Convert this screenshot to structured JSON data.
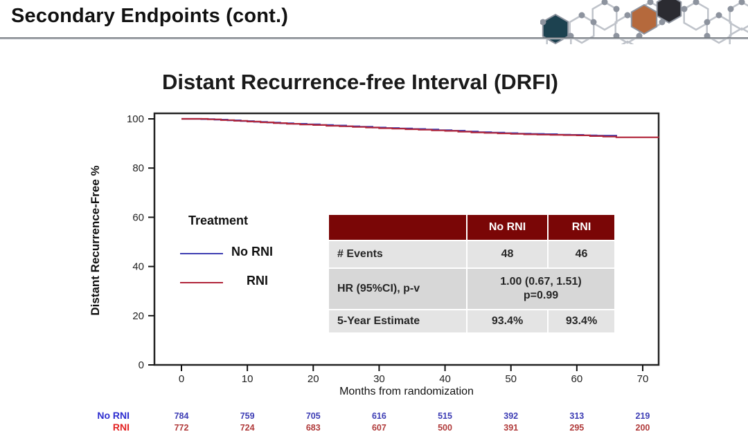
{
  "slide_header": {
    "title": "Secondary Endpoints (cont.)"
  },
  "chart_data": {
    "type": "line",
    "subtype": "kaplan-meier-step",
    "title": "Distant Recurrence-free Interval (DRFI)",
    "xlabel": "Months from randomization",
    "ylabel": "Distant Recurrence-Free %",
    "xlim": [
      0,
      72.4
    ],
    "ylim": [
      0,
      100
    ],
    "x_ticks": [
      0,
      10,
      20,
      30,
      40,
      50,
      60,
      70
    ],
    "y_ticks": [
      0,
      20,
      40,
      60,
      80,
      100
    ],
    "grid": "off",
    "legend_position": "inside-left",
    "legend_title": "Treatment",
    "series": [
      {
        "name": "No RNI",
        "color": "#3c3cb2",
        "step_points": [
          [
            0,
            100
          ],
          [
            3,
            99.9
          ],
          [
            5,
            99.7
          ],
          [
            7,
            99.4
          ],
          [
            9,
            99.1
          ],
          [
            11,
            98.8
          ],
          [
            13,
            98.5
          ],
          [
            15,
            98.2
          ],
          [
            17,
            98.0
          ],
          [
            19,
            97.8
          ],
          [
            21,
            97.5
          ],
          [
            23,
            97.3
          ],
          [
            25,
            97.0
          ],
          [
            27,
            96.8
          ],
          [
            29,
            96.5
          ],
          [
            31,
            96.3
          ],
          [
            33,
            96.1
          ],
          [
            35,
            95.9
          ],
          [
            37,
            95.7
          ],
          [
            39,
            95.4
          ],
          [
            41,
            95.2
          ],
          [
            43,
            94.9
          ],
          [
            45,
            94.6
          ],
          [
            47,
            94.4
          ],
          [
            49,
            94.2
          ],
          [
            51,
            94.0
          ],
          [
            53,
            93.9
          ],
          [
            55,
            93.8
          ],
          [
            57,
            93.6
          ],
          [
            59,
            93.5
          ],
          [
            61,
            93.3
          ],
          [
            63,
            93.2
          ],
          [
            66,
            92.8
          ]
        ]
      },
      {
        "name": "RNI",
        "color": "#b02438",
        "step_points": [
          [
            0,
            100
          ],
          [
            4,
            99.8
          ],
          [
            6,
            99.5
          ],
          [
            8,
            99.2
          ],
          [
            10,
            98.9
          ],
          [
            12,
            98.6
          ],
          [
            14,
            98.3
          ],
          [
            16,
            98.0
          ],
          [
            18,
            97.7
          ],
          [
            20,
            97.5
          ],
          [
            22,
            97.2
          ],
          [
            24,
            97.0
          ],
          [
            26,
            96.7
          ],
          [
            28,
            96.5
          ],
          [
            30,
            96.2
          ],
          [
            32,
            96.0
          ],
          [
            34,
            95.8
          ],
          [
            36,
            95.6
          ],
          [
            38,
            95.3
          ],
          [
            40,
            95.1
          ],
          [
            42,
            94.8
          ],
          [
            44,
            94.5
          ],
          [
            46,
            94.3
          ],
          [
            48,
            94.1
          ],
          [
            50,
            93.9
          ],
          [
            52,
            93.7
          ],
          [
            54,
            93.6
          ],
          [
            56,
            93.5
          ],
          [
            58,
            93.4
          ],
          [
            60,
            93.3
          ],
          [
            62,
            93.0
          ],
          [
            64,
            92.8
          ],
          [
            66,
            92.5
          ],
          [
            72.4,
            92.4
          ]
        ]
      }
    ],
    "risk_table": {
      "months": [
        0,
        10,
        20,
        30,
        40,
        50,
        60,
        70
      ],
      "rows": [
        {
          "label": "No RNI",
          "label_color": "#2d2dd0",
          "value_color": "#3c3cb4",
          "values": [
            "784",
            "759",
            "705",
            "616",
            "515",
            "392",
            "313",
            "219"
          ]
        },
        {
          "label": "RNI",
          "label_color": "#e32222",
          "value_color": "#b03a3a",
          "values": [
            "772",
            "724",
            "683",
            "607",
            "500",
            "391",
            "295",
            "200"
          ]
        }
      ]
    }
  },
  "stats_table": {
    "header_bg": "#7a0606",
    "header": [
      "",
      "No RNI",
      "RNI"
    ],
    "rows": {
      "events": {
        "label": "# Events",
        "no_rni": "48",
        "rni": "46"
      },
      "hr": {
        "label": "HR (95%CI), p-v",
        "value_line1": "1.00 (0.67, 1.51)",
        "value_line2": "p=0.99"
      },
      "estimate": {
        "label": "5-Year Estimate",
        "no_rni": "93.4%",
        "rni": "93.4%"
      }
    }
  },
  "decoration": {
    "name": "molecular-hexagon-network"
  }
}
